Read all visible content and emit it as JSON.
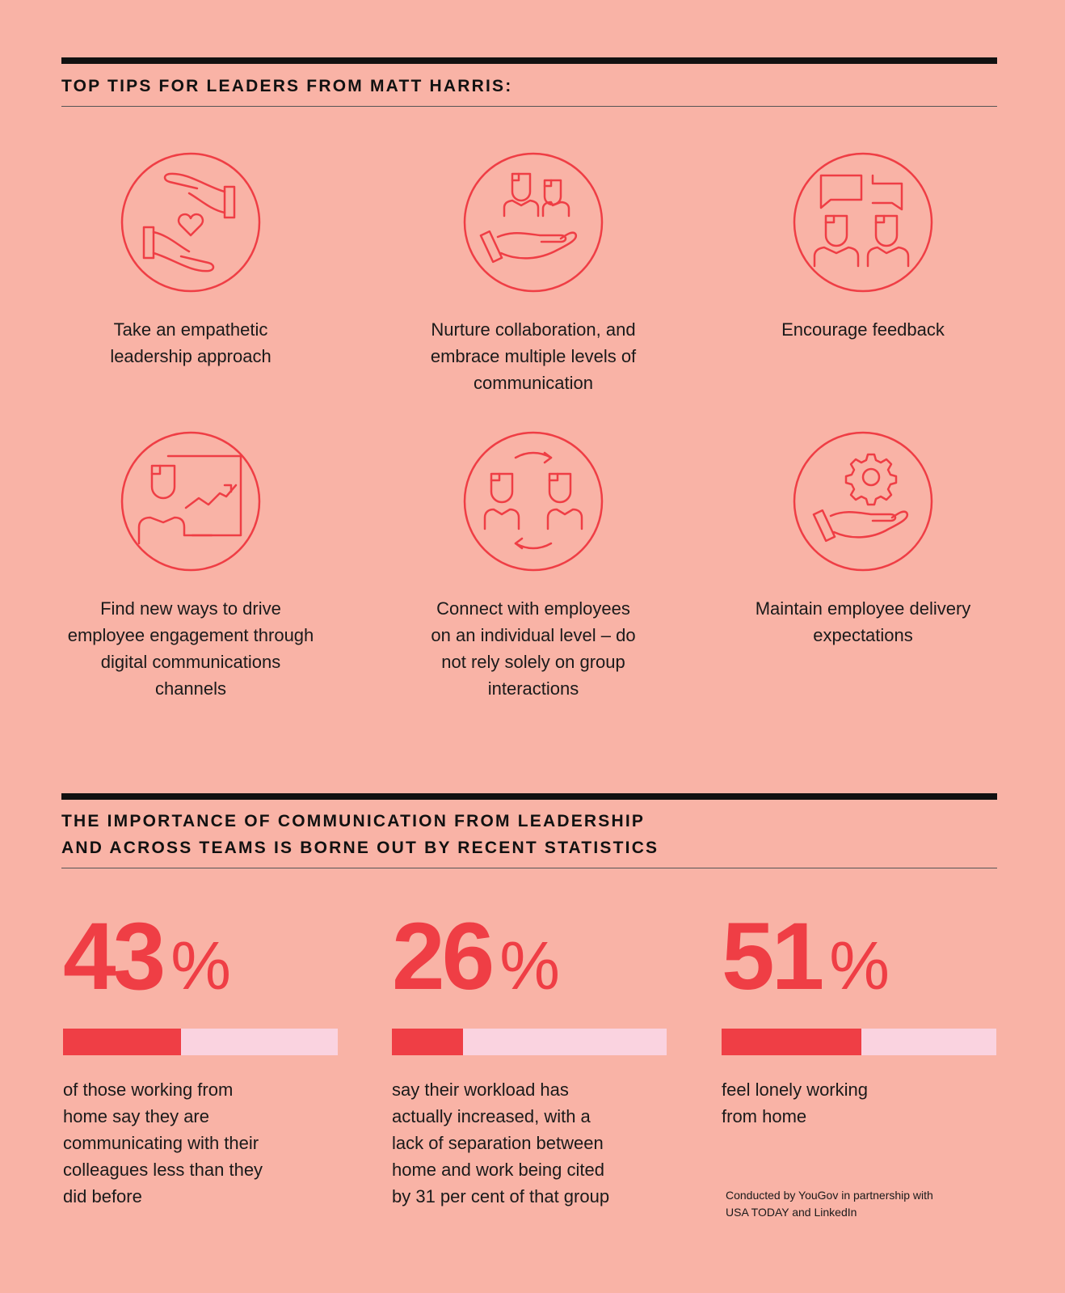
{
  "section1": {
    "heading": "TOP TIPS FOR LEADERS FROM MATT HARRIS:",
    "tips": [
      {
        "icon": "hands-heart-icon",
        "lines": [
          "Take an empathetic",
          "leadership approach"
        ]
      },
      {
        "icon": "hand-people-icon",
        "lines": [
          "Nurture collaboration, and",
          "embrace multiple levels of",
          "communication"
        ]
      },
      {
        "icon": "people-chat-icon",
        "lines": [
          "Encourage feedback"
        ]
      },
      {
        "icon": "person-chart-icon",
        "lines": [
          "Find new ways to drive",
          "employee engagement through",
          "digital communications",
          "channels"
        ]
      },
      {
        "icon": "people-exchange-icon",
        "lines": [
          "Connect with employees",
          "on an individual level – do",
          "not rely solely on group",
          "interactions"
        ]
      },
      {
        "icon": "hand-gear-icon",
        "lines": [
          "Maintain employee delivery",
          "expectations"
        ]
      }
    ]
  },
  "section2": {
    "heading_lines": [
      "THE IMPORTANCE OF COMMUNICATION FROM LEADERSHIP",
      "AND ACROSS TEAMS IS BORNE OUT BY RECENT STATISTICS"
    ],
    "stats": [
      {
        "value": "43",
        "unit": "%",
        "fraction": 0.43,
        "lines": [
          "of those working from",
          "home say they are",
          "communicating with their",
          "colleagues less than they",
          "did before"
        ]
      },
      {
        "value": "26",
        "unit": "%",
        "fraction": 0.26,
        "lines": [
          "say their workload has",
          "actually increased, with a",
          "lack of separation between",
          "home and work being cited",
          "by 31 per cent of that group"
        ]
      },
      {
        "value": "51",
        "unit": "%",
        "fraction": 0.51,
        "lines": [
          "feel lonely working",
          "from home"
        ]
      }
    ],
    "source_lines": [
      "Conducted by YouGov in partnership with",
      "USA TODAY and LinkedIn"
    ]
  },
  "colors": {
    "background": "#F9B3A6",
    "accent": "#EF3E45",
    "bar_track": "#FAD3E0",
    "rule": "#111111"
  }
}
